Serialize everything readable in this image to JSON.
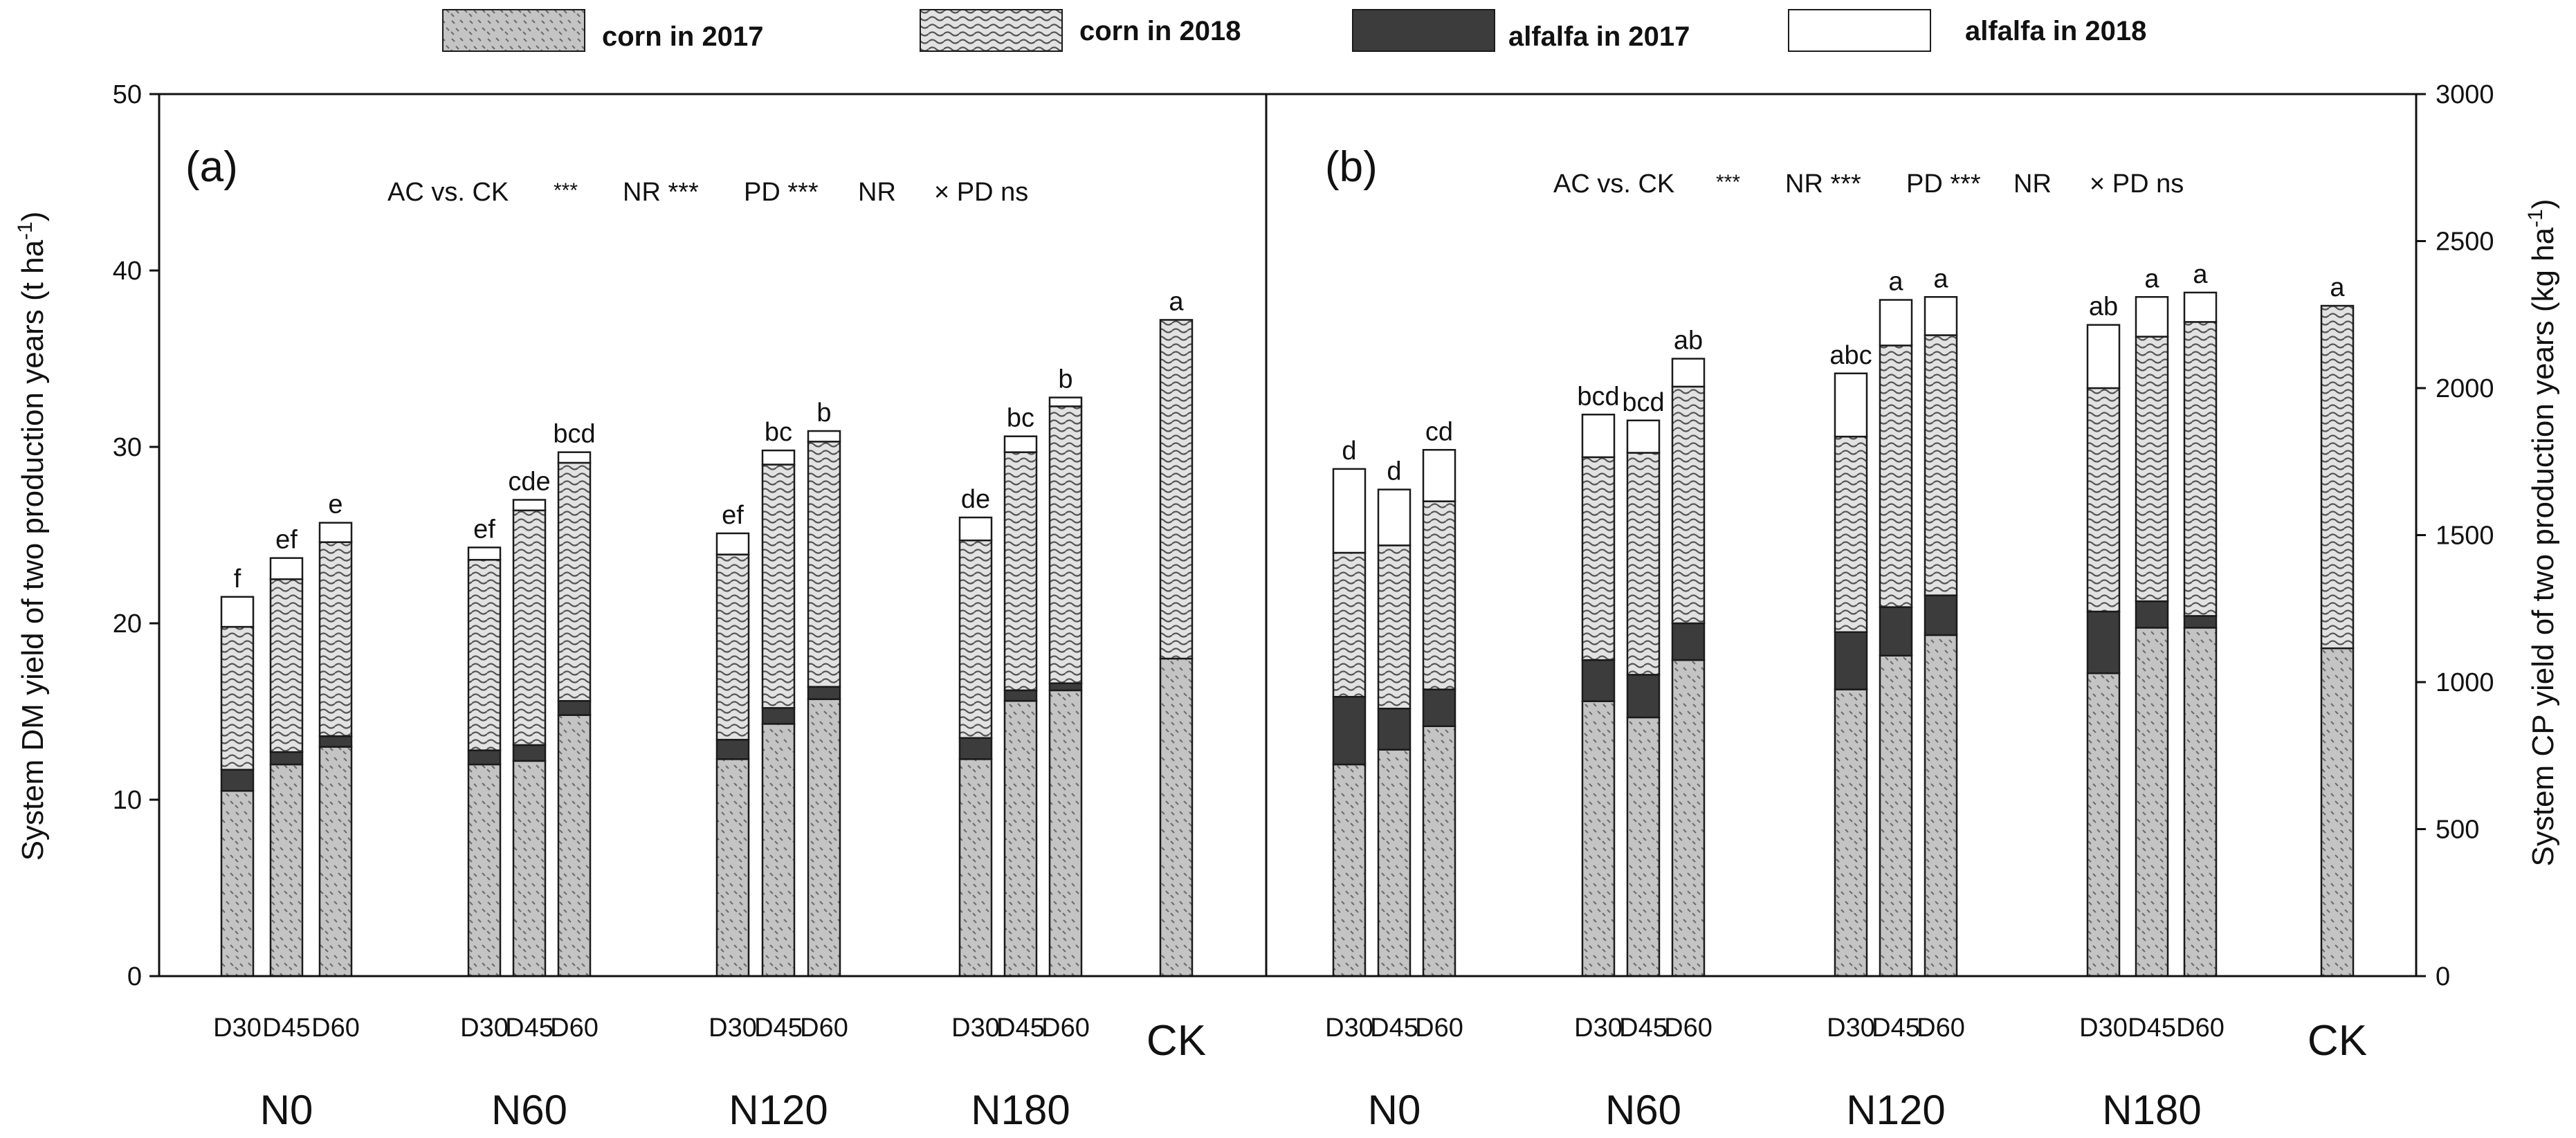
{
  "chart_data": {
    "type": "bar",
    "stacked": true,
    "legend": {
      "items": [
        {
          "key": "corn2017",
          "label": "corn in 2017"
        },
        {
          "key": "corn2018",
          "label": "corn in 2018"
        },
        {
          "key": "alf2017",
          "label": "alfalfa in 2017"
        },
        {
          "key": "alf2018",
          "label": "alfalfa in 2018"
        }
      ]
    },
    "colors": {
      "corn2017_fill": "#c8c8c8",
      "corn2018_fill": "#dedede",
      "alfalfa2017_fill": "#3c3c3c",
      "alfalfa2018_fill": "#ffffff",
      "stroke": "#1a1a1a"
    },
    "groups": [
      "N0",
      "N60",
      "N120",
      "N180"
    ],
    "ck_label": "CK",
    "panels": [
      {
        "id": "a",
        "panel_label": "(a)",
        "stats": [
          "AC vs. CK",
          "***",
          "NR ***",
          "PD ***",
          "NR",
          "× PD ns"
        ],
        "ylabel": "System DM yield of two production years (t ha",
        "ylabel_sup": "-1",
        "ylabel_close": ")",
        "ylim": [
          0,
          50
        ],
        "yticks": [
          "0",
          "10",
          "20",
          "30",
          "40",
          "50"
        ],
        "axis_side": "left",
        "bars": [
          {
            "group": "N0",
            "label": "D30",
            "corn2017": 10.5,
            "alf2017": 1.2,
            "corn2018": 8.1,
            "alf2018": 1.7,
            "letter": "f"
          },
          {
            "group": "N0",
            "label": "D45",
            "corn2017": 12.0,
            "alf2017": 0.7,
            "corn2018": 9.8,
            "alf2018": 1.2,
            "letter": "ef"
          },
          {
            "group": "N0",
            "label": "D60",
            "corn2017": 13.0,
            "alf2017": 0.6,
            "corn2018": 11.0,
            "alf2018": 1.1,
            "letter": "e"
          },
          {
            "group": "N60",
            "label": "D30",
            "corn2017": 12.0,
            "alf2017": 0.8,
            "corn2018": 10.8,
            "alf2018": 0.7,
            "letter": "ef"
          },
          {
            "group": "N60",
            "label": "D45",
            "corn2017": 12.2,
            "alf2017": 0.9,
            "corn2018": 13.3,
            "alf2018": 0.6,
            "letter": "cde"
          },
          {
            "group": "N60",
            "label": "D60",
            "corn2017": 14.8,
            "alf2017": 0.8,
            "corn2018": 13.5,
            "alf2018": 0.6,
            "letter": "bcd"
          },
          {
            "group": "N120",
            "label": "D30",
            "corn2017": 12.3,
            "alf2017": 1.1,
            "corn2018": 10.5,
            "alf2018": 1.2,
            "letter": "ef"
          },
          {
            "group": "N120",
            "label": "D45",
            "corn2017": 14.3,
            "alf2017": 0.9,
            "corn2018": 13.8,
            "alf2018": 0.8,
            "letter": "bc"
          },
          {
            "group": "N120",
            "label": "D60",
            "corn2017": 15.7,
            "alf2017": 0.7,
            "corn2018": 13.9,
            "alf2018": 0.6,
            "letter": "b"
          },
          {
            "group": "N180",
            "label": "D30",
            "corn2017": 12.3,
            "alf2017": 1.2,
            "corn2018": 11.2,
            "alf2018": 1.3,
            "letter": "de"
          },
          {
            "group": "N180",
            "label": "D45",
            "corn2017": 15.6,
            "alf2017": 0.6,
            "corn2018": 13.5,
            "alf2018": 0.9,
            "letter": "bc"
          },
          {
            "group": "N180",
            "label": "D60",
            "corn2017": 16.2,
            "alf2017": 0.4,
            "corn2018": 15.7,
            "alf2018": 0.5,
            "letter": "b"
          },
          {
            "group": "CK",
            "label": "",
            "corn2017": 18.0,
            "alf2017": 0,
            "corn2018": 19.2,
            "alf2018": 0,
            "letter": "a"
          }
        ]
      },
      {
        "id": "b",
        "panel_label": "(b)",
        "stats": [
          "AC vs. CK",
          "***",
          "NR ***",
          "PD ***",
          "NR",
          "× PD ns"
        ],
        "ylabel": "System CP yield of two production years (kg ha",
        "ylabel_sup": "-1",
        "ylabel_close": ")",
        "ylim": [
          0,
          3000
        ],
        "yticks": [
          "0",
          "500",
          "1000",
          "1500",
          "2000",
          "2500",
          "3000"
        ],
        "axis_side": "right",
        "bars": [
          {
            "group": "N0",
            "label": "D30",
            "corn2017": 720,
            "alf2017": 230,
            "corn2018": 490,
            "alf2018": 285,
            "letter": "d"
          },
          {
            "group": "N0",
            "label": "D45",
            "corn2017": 770,
            "alf2017": 140,
            "corn2018": 555,
            "alf2018": 190,
            "letter": "d"
          },
          {
            "group": "N0",
            "label": "D60",
            "corn2017": 850,
            "alf2017": 125,
            "corn2018": 640,
            "alf2018": 175,
            "letter": "cd"
          },
          {
            "group": "N60",
            "label": "D30",
            "corn2017": 935,
            "alf2017": 140,
            "corn2018": 690,
            "alf2018": 145,
            "letter": "bcd"
          },
          {
            "group": "N60",
            "label": "D45",
            "corn2017": 880,
            "alf2017": 145,
            "corn2018": 755,
            "alf2018": 110,
            "letter": "bcd"
          },
          {
            "group": "N60",
            "label": "D60",
            "corn2017": 1075,
            "alf2017": 125,
            "corn2018": 805,
            "alf2018": 95,
            "letter": "ab"
          },
          {
            "group": "N120",
            "label": "D30",
            "corn2017": 975,
            "alf2017": 195,
            "corn2018": 665,
            "alf2018": 215,
            "letter": "abc"
          },
          {
            "group": "N120",
            "label": "D45",
            "corn2017": 1090,
            "alf2017": 165,
            "corn2018": 890,
            "alf2018": 155,
            "letter": "a"
          },
          {
            "group": "N120",
            "label": "D60",
            "corn2017": 1160,
            "alf2017": 135,
            "corn2018": 885,
            "alf2018": 130,
            "letter": "a"
          },
          {
            "group": "N180",
            "label": "D30",
            "corn2017": 1030,
            "alf2017": 210,
            "corn2018": 760,
            "alf2018": 215,
            "letter": "ab"
          },
          {
            "group": "N180",
            "label": "D45",
            "corn2017": 1185,
            "alf2017": 90,
            "corn2018": 900,
            "alf2018": 135,
            "letter": "a"
          },
          {
            "group": "N180",
            "label": "D60",
            "corn2017": 1185,
            "alf2017": 40,
            "corn2018": 1000,
            "alf2018": 100,
            "letter": "a"
          },
          {
            "group": "CK",
            "label": "",
            "corn2017": 1115,
            "alf2017": 0,
            "corn2018": 1165,
            "alf2018": 0,
            "letter": "a"
          }
        ]
      }
    ]
  }
}
